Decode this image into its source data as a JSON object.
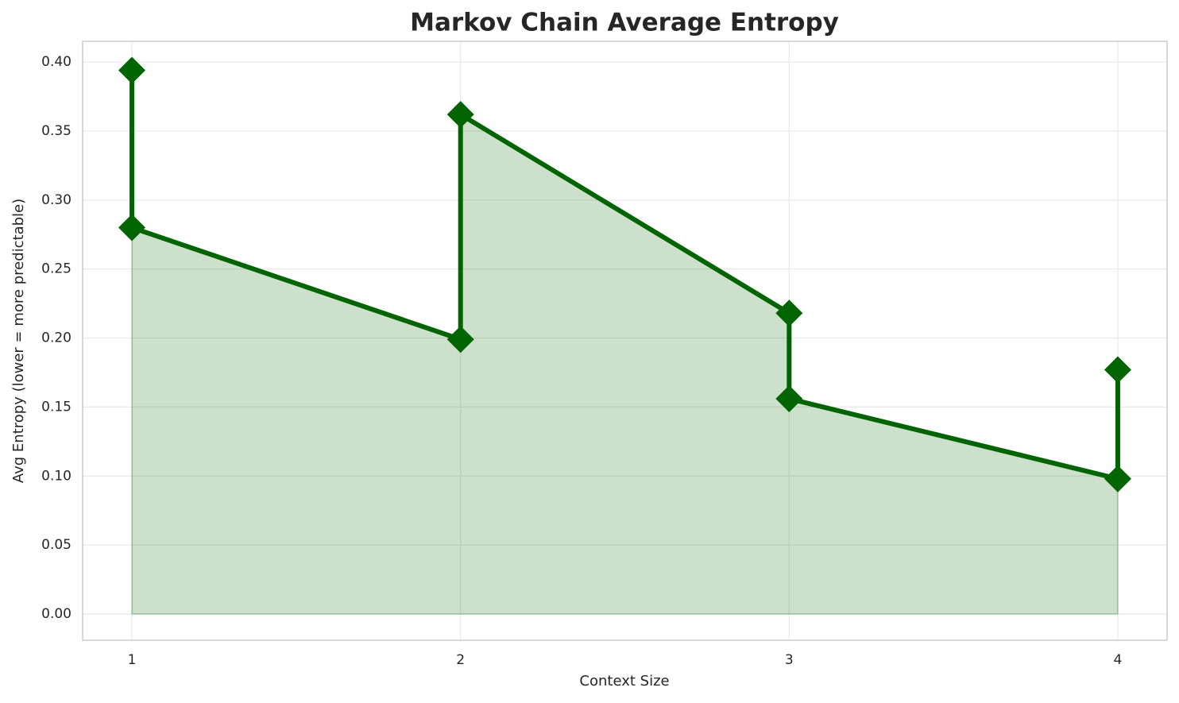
{
  "chart_data": {
    "type": "line",
    "title": "Markov Chain Average Entropy",
    "x_label": "Context Size",
    "y_label": "Avg Entropy (lower = more predictable)",
    "series": [
      {
        "name": "Avg Entropy",
        "color": "#006400",
        "x": [
          1,
          1,
          2,
          2,
          3,
          3,
          4,
          4
        ],
        "values": [
          0.394,
          0.28,
          0.199,
          0.362,
          0.218,
          0.156,
          0.098,
          0.177
        ]
      }
    ],
    "fill_under": true,
    "marker": "diamond",
    "xlim": [
      0.85,
      4.15
    ],
    "xticks": [
      1,
      2,
      3,
      4
    ],
    "ylim": [
      -0.019,
      0.415
    ],
    "yticks": [
      {
        "value": 0,
        "label": "0.00"
      },
      {
        "value": 0.05,
        "label": "0.05"
      },
      {
        "value": 0.1,
        "label": "0.10"
      },
      {
        "value": 0.15,
        "label": "0.15"
      },
      {
        "value": 0.2,
        "label": "0.20"
      },
      {
        "value": 0.25,
        "label": "0.25"
      },
      {
        "value": 0.3,
        "label": "0.30"
      },
      {
        "value": 0.35,
        "label": "0.35"
      },
      {
        "value": 0.4,
        "label": "0.40"
      }
    ],
    "grid": true
  }
}
